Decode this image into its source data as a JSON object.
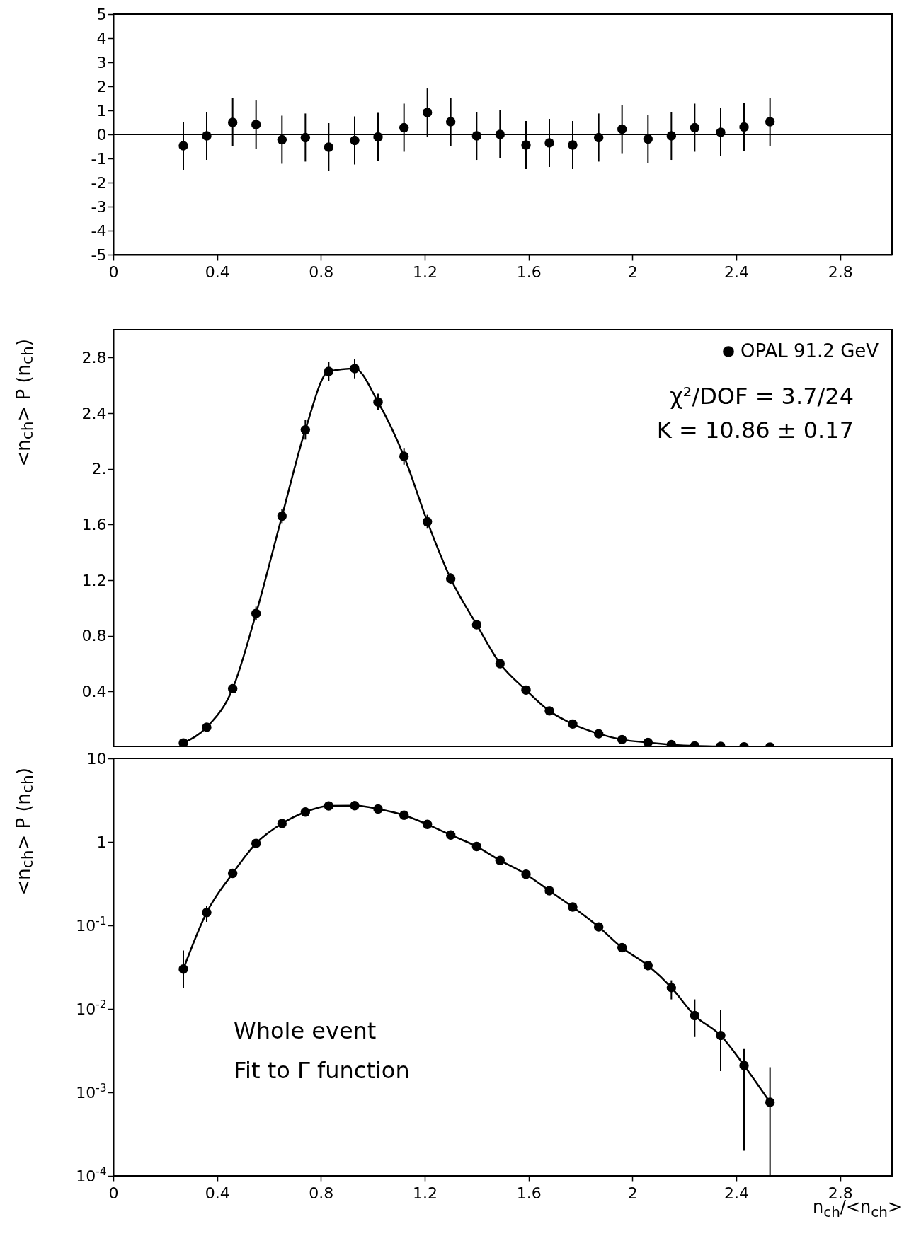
{
  "chart_data": [
    {
      "type": "scatter",
      "x": [
        0.27,
        0.36,
        0.46,
        0.55,
        0.65,
        0.74,
        0.83,
        0.93,
        1.02,
        1.12,
        1.21,
        1.3,
        1.4,
        1.49,
        1.59,
        1.68,
        1.77,
        1.87,
        1.96,
        2.06,
        2.15,
        2.24,
        2.34,
        2.43,
        2.53
      ],
      "series": [
        {
          "type": "scatter",
          "color": "#000000",
          "marker": "circle",
          "values": [
            -0.47,
            -0.06,
            0.5,
            0.41,
            -0.22,
            -0.13,
            -0.53,
            -0.25,
            -0.1,
            0.28,
            0.91,
            0.53,
            -0.06,
            0,
            -0.44,
            -0.35,
            -0.44,
            -0.13,
            0.22,
            -0.19,
            -0.06,
            0.28,
            0.09,
            0.31,
            0.53
          ],
          "errors": [
            1,
            1,
            1,
            1,
            1,
            1,
            1,
            1,
            1,
            1,
            1,
            1,
            1,
            1,
            1,
            1,
            1,
            1,
            1,
            1,
            1,
            1,
            1,
            1,
            1
          ]
        }
      ],
      "xlim": [
        0,
        3
      ],
      "xticks": [
        0,
        0.4,
        0.8,
        1.2,
        1.6,
        2,
        2.4,
        2.8
      ],
      "ylim": [
        -5,
        5
      ],
      "yticks": [
        -5,
        -4,
        -3,
        -2,
        -1,
        0,
        1,
        2,
        3,
        4,
        5
      ],
      "ref_lines": [
        {
          "axis": "y",
          "value": 0,
          "color": "#000000"
        }
      ]
    },
    {
      "type": "scatter",
      "ylabel": "<n$_{ch}$> P (n$_{ch}$)",
      "annotations": [
        "χ²/DOF = 3.7/24",
        "K = 10.86 ± 0.17"
      ],
      "x": [
        0.27,
        0.36,
        0.46,
        0.55,
        0.65,
        0.74,
        0.83,
        0.93,
        1.02,
        1.12,
        1.21,
        1.3,
        1.4,
        1.49,
        1.59,
        1.68,
        1.77,
        1.87,
        1.96,
        2.06,
        2.15,
        2.24,
        2.34,
        2.43,
        2.53
      ],
      "series": [
        {
          "name": "OPAL 91.2 GeV",
          "type": "scatter",
          "color": "#000000",
          "marker": "circle",
          "values": [
            0.03,
            0.143,
            0.42,
            0.96,
            1.66,
            2.28,
            2.7,
            2.72,
            2.48,
            2.09,
            1.62,
            1.21,
            0.88,
            0.6,
            0.41,
            0.26,
            0.166,
            0.096,
            0.054,
            0.033,
            0.018,
            0.0083,
            0.0048,
            0.0021,
            0.00076
          ],
          "errors": [
            [
              0.018,
              0.05
            ],
            [
              0.11,
              0.17
            ],
            0.03,
            0.05,
            0.05,
            0.07,
            0.07,
            0.07,
            0.06,
            0.06,
            0.05,
            0.04,
            0.03,
            0.02,
            0.02,
            0.015,
            0.01,
            0.008,
            0.005,
            0.004,
            null,
            null,
            null,
            null,
            null
          ]
        },
        {
          "type": "line",
          "color": "#000000",
          "marker": "none",
          "values": [
            0.03,
            0.143,
            0.42,
            0.96,
            1.66,
            2.28,
            2.7,
            2.72,
            2.48,
            2.09,
            1.62,
            1.21,
            0.88,
            0.6,
            0.41,
            0.26,
            0.166,
            0.096,
            0.054,
            0.033,
            0.018,
            0.0083,
            0.0048,
            0.0021,
            0.00076
          ]
        }
      ],
      "xlim": [
        0,
        3
      ],
      "xticks": [
        0,
        0.4,
        0.8,
        1.2,
        1.6,
        2,
        2.4,
        2.8
      ],
      "ylim": [
        0,
        3
      ],
      "yticks": [
        0.4,
        0.8,
        1.2,
        1.6,
        {
          "value": 2,
          "label": "2."
        },
        2.4,
        2.8
      ],
      "tick_labels": "y",
      "legend": "top right"
    },
    {
      "type": "scatter",
      "xlabel": "n$_{ch}$/<n$_{ch}$>",
      "ylabel": "<n$_{ch}$> P (n$_{ch}$)",
      "annotations": [
        "Whole event",
        "Fit to Γ function"
      ],
      "x": [
        0.27,
        0.36,
        0.46,
        0.55,
        0.65,
        0.74,
        0.83,
        0.93,
        1.02,
        1.12,
        1.21,
        1.3,
        1.4,
        1.49,
        1.59,
        1.68,
        1.77,
        1.87,
        1.96,
        2.06,
        2.15,
        2.24,
        2.34,
        2.43,
        2.53
      ],
      "series": [
        {
          "type": "scatter",
          "color": "#000000",
          "marker": "circle",
          "values": [
            0.03,
            0.143,
            0.42,
            0.96,
            1.66,
            2.28,
            2.7,
            2.72,
            2.48,
            2.09,
            1.62,
            1.21,
            0.88,
            0.6,
            0.41,
            0.26,
            0.166,
            0.096,
            0.054,
            0.033,
            0.018,
            0.0083,
            0.0048,
            0.0021,
            0.00076
          ],
          "errors": [
            [
              0.018,
              0.05
            ],
            [
              0.11,
              0.17
            ],
            0.03,
            0.05,
            0.05,
            0.07,
            0.07,
            0.07,
            0.06,
            0.06,
            0.05,
            0.04,
            0.03,
            0.02,
            0.02,
            0.015,
            0.01,
            0.008,
            0.005,
            0.004,
            [
              0.013,
              0.022
            ],
            [
              0.0046,
              0.013
            ],
            [
              0.0018,
              0.0096
            ],
            [
              0.0002,
              0.0033
            ],
            [
              0.0001,
              0.002
            ]
          ]
        },
        {
          "type": "line",
          "color": "#000000",
          "marker": "none",
          "values": [
            0.03,
            0.143,
            0.42,
            0.96,
            1.66,
            2.28,
            2.7,
            2.72,
            2.48,
            2.09,
            1.62,
            1.21,
            0.88,
            0.6,
            0.41,
            0.26,
            0.166,
            0.096,
            0.054,
            0.033,
            0.018,
            0.0083,
            0.0048,
            0.0021,
            0.00076
          ]
        }
      ],
      "xlim": [
        0,
        3
      ],
      "xticks": [
        0,
        0.4,
        0.8,
        1.2,
        1.6,
        2,
        2.4,
        2.8
      ],
      "ylim": [
        0.0001,
        10
      ],
      "yticks": [
        10,
        1,
        {
          "value": 0.1,
          "label": "10$^{-1}$"
        },
        {
          "value": 0.01,
          "label": "10$^{-2}$"
        },
        {
          "value": 0.001,
          "label": "10$^{-3}$"
        },
        {
          "value": 0.0001,
          "label": "10$^{-4}$"
        }
      ],
      "log": true
    }
  ]
}
